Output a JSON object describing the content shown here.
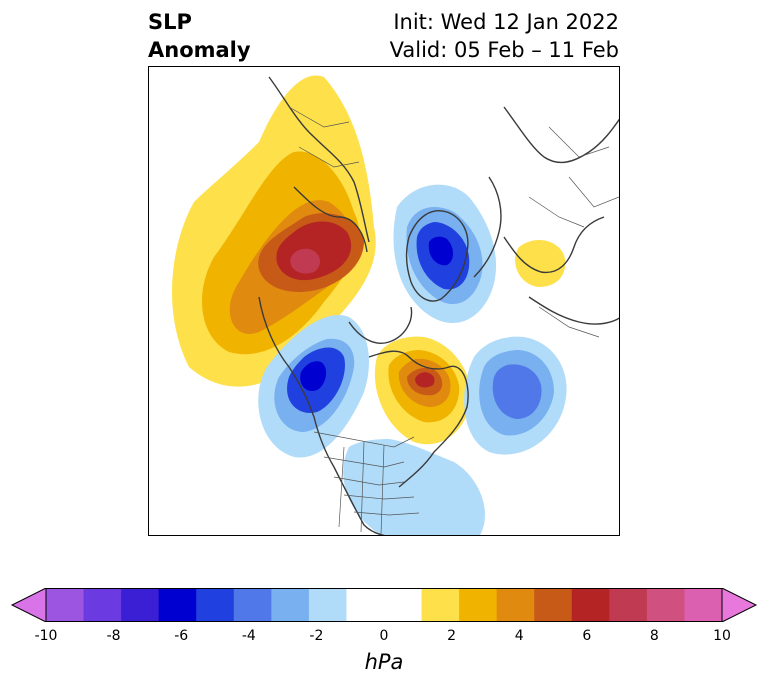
{
  "title": {
    "left_line1": "SLP",
    "left_line2": "Anomaly",
    "right_line1": "Init: Wed 12 Jan 2022",
    "right_line2": "Valid: 05 Feb – 11 Feb"
  },
  "colorbar": {
    "label": "hPa",
    "range": [
      -10,
      10
    ],
    "extend": "both",
    "tick_labels": [
      "-10",
      "-8",
      "-6",
      "-4",
      "-2",
      "0",
      "2",
      "4",
      "6",
      "8",
      "10"
    ],
    "colors": [
      "#9b55e0",
      "#6b3ae0",
      "#3a1fd4",
      "#0000d0",
      "#2040e0",
      "#5078e8",
      "#78b0f0",
      "#b0dcfa",
      "#ffffff",
      "#ffffff",
      "#fde04a",
      "#f0b400",
      "#e08a10",
      "#c85a18",
      "#b42424",
      "#c03a52",
      "#d05080",
      "#dc60b0"
    ],
    "under_color": "#d873e8",
    "over_color": "#e878dc"
  }
}
